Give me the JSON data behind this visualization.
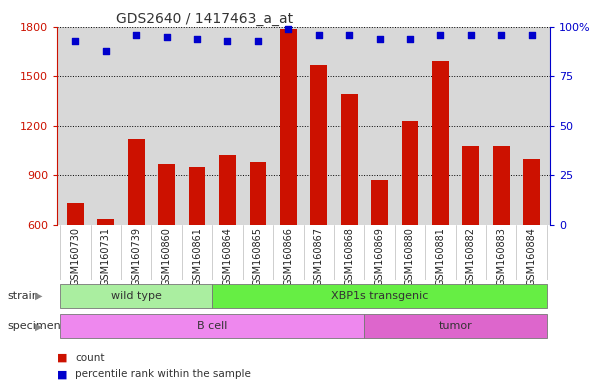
{
  "title": "GDS2640 / 1417463_a_at",
  "samples": [
    "GSM160730",
    "GSM160731",
    "GSM160739",
    "GSM160860",
    "GSM160861",
    "GSM160864",
    "GSM160865",
    "GSM160866",
    "GSM160867",
    "GSM160868",
    "GSM160869",
    "GSM160880",
    "GSM160881",
    "GSM160882",
    "GSM160883",
    "GSM160884"
  ],
  "counts": [
    730,
    635,
    1120,
    970,
    950,
    1020,
    980,
    1790,
    1570,
    1390,
    870,
    1230,
    1590,
    1075,
    1075,
    1000
  ],
  "percentiles": [
    93,
    88,
    96,
    95,
    94,
    93,
    93,
    99,
    96,
    96,
    94,
    94,
    96,
    96,
    96,
    96
  ],
  "bar_color": "#cc1100",
  "dot_color": "#0000cc",
  "ylim_left": [
    600,
    1800
  ],
  "ylim_right": [
    0,
    100
  ],
  "yticks_left": [
    600,
    900,
    1200,
    1500,
    1800
  ],
  "yticks_right": [
    0,
    25,
    50,
    75,
    100
  ],
  "strain_groups": [
    {
      "label": "wild type",
      "start": 0,
      "end": 4,
      "color": "#aaeea0"
    },
    {
      "label": "XBP1s transgenic",
      "start": 5,
      "end": 15,
      "color": "#66ee44"
    }
  ],
  "specimen_groups": [
    {
      "label": "B cell",
      "start": 0,
      "end": 9,
      "color": "#ee88ee"
    },
    {
      "label": "tumor",
      "start": 10,
      "end": 15,
      "color": "#dd66cc"
    }
  ],
  "strain_label": "strain",
  "specimen_label": "specimen",
  "legend_count_label": "count",
  "legend_pct_label": "percentile rank within the sample",
  "bg_color": "#ffffff",
  "plot_bg_color": "#d8d8d8",
  "tick_bg_color": "#cccccc",
  "grid_color": "#000000",
  "title_fontsize": 10,
  "tick_fontsize": 7
}
